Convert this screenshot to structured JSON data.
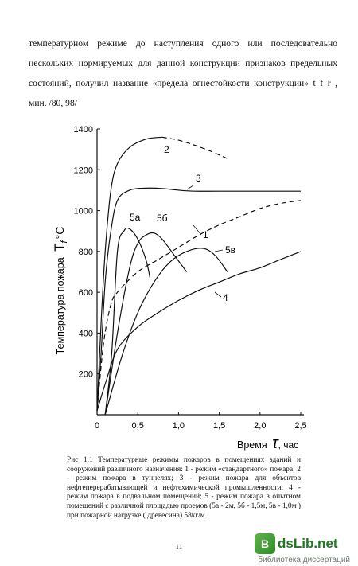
{
  "paragraph": {
    "text": "температурном режиме до наступления одного или последовательно нескольких нормируемых для данной конструкции признаков предельных состояний, получил название «предела огнестойкости конструкции» t f r , мин. /80, 98/"
  },
  "chart_data": {
    "type": "line",
    "title": "",
    "xlabel": "Время τ, час",
    "ylabel": "Температура пожара T_f, °C",
    "xlim": [
      0,
      2.5
    ],
    "ylim": [
      0,
      1400
    ],
    "x_ticks": [
      "0",
      "0,5",
      "1,0",
      "1,5",
      "2,0",
      "2,5"
    ],
    "y_ticks": [
      "200",
      "400",
      "600",
      "800",
      "1000",
      "1200",
      "1400"
    ],
    "grid": false,
    "legend": "none",
    "series": [
      {
        "name": "1",
        "dashed": true,
        "points": [
          [
            0,
            20
          ],
          [
            0.08,
            350
          ],
          [
            0.17,
            540
          ],
          [
            0.25,
            600
          ],
          [
            0.5,
            700
          ],
          [
            0.75,
            760
          ],
          [
            1.0,
            820
          ],
          [
            1.25,
            880
          ],
          [
            1.5,
            930
          ],
          [
            1.75,
            970
          ],
          [
            2.0,
            1010
          ],
          [
            2.25,
            1035
          ],
          [
            2.5,
            1050
          ]
        ]
      },
      {
        "name": "2",
        "dashed_from": 0.9,
        "points": [
          [
            0,
            20
          ],
          [
            0.05,
            450
          ],
          [
            0.1,
            800
          ],
          [
            0.17,
            1100
          ],
          [
            0.25,
            1230
          ],
          [
            0.4,
            1310
          ],
          [
            0.6,
            1350
          ],
          [
            0.8,
            1360
          ],
          [
            1.0,
            1345
          ],
          [
            1.2,
            1320
          ],
          [
            1.4,
            1290
          ],
          [
            1.6,
            1255
          ]
        ]
      },
      {
        "name": "3",
        "points": [
          [
            0,
            20
          ],
          [
            0.05,
            300
          ],
          [
            0.1,
            650
          ],
          [
            0.17,
            900
          ],
          [
            0.25,
            1050
          ],
          [
            0.4,
            1100
          ],
          [
            0.6,
            1110
          ],
          [
            0.8,
            1108
          ],
          [
            1.0,
            1100
          ],
          [
            1.2,
            1095
          ],
          [
            1.5,
            1095
          ],
          [
            2.0,
            1095
          ],
          [
            2.5,
            1095
          ]
        ]
      },
      {
        "name": "5а",
        "points": [
          [
            0.1,
            0
          ],
          [
            0.18,
            300
          ],
          [
            0.25,
            800
          ],
          [
            0.33,
            900
          ],
          [
            0.4,
            910
          ],
          [
            0.5,
            860
          ],
          [
            0.6,
            760
          ],
          [
            0.65,
            670
          ]
        ]
      },
      {
        "name": "5б",
        "points": [
          [
            0.1,
            0
          ],
          [
            0.25,
            400
          ],
          [
            0.4,
            720
          ],
          [
            0.5,
            840
          ],
          [
            0.6,
            880
          ],
          [
            0.7,
            890
          ],
          [
            0.8,
            860
          ],
          [
            0.95,
            780
          ],
          [
            1.1,
            700
          ]
        ]
      },
      {
        "name": "5в",
        "points": [
          [
            0.1,
            0
          ],
          [
            0.3,
            280
          ],
          [
            0.5,
            500
          ],
          [
            0.7,
            650
          ],
          [
            0.9,
            750
          ],
          [
            1.1,
            800
          ],
          [
            1.3,
            815
          ],
          [
            1.45,
            780
          ],
          [
            1.6,
            700
          ]
        ]
      },
      {
        "name": "4",
        "points": [
          [
            0,
            20
          ],
          [
            0.1,
            150
          ],
          [
            0.25,
            320
          ],
          [
            0.5,
            430
          ],
          [
            0.75,
            500
          ],
          [
            1.0,
            560
          ],
          [
            1.25,
            610
          ],
          [
            1.5,
            650
          ],
          [
            1.75,
            690
          ],
          [
            2.0,
            720
          ],
          [
            2.25,
            760
          ],
          [
            2.5,
            800
          ]
        ]
      }
    ]
  },
  "axis": {
    "ylabel": "Температура пожара",
    "ysymbol": "T",
    "ysubscript": "f",
    "yunit": "°C",
    "xlabel": "Время",
    "xsymbol": "τ",
    "xunit": ", час"
  },
  "labels": {
    "s1": "1",
    "s2": "2",
    "s3": "3",
    "s4": "4",
    "s5a": "5а",
    "s5b": "5б",
    "s5v": "5в"
  },
  "caption": {
    "text": "Рис 1.1 Температурные режимы пожаров в помещениях зданий и сооружений различного назначения: 1 - режим «стандартного» пожара; 2 - режим пожара в туннелях; 3 - режим пожара для объектов нефтеперерабатывающей и нефтехимической промышленности; 4 - режим пожара в подвальном помещений; 5 - режим пожара в опытном помещений с различной площадью проемов (5а - 2м, 5б - 1,5м, 5в - 1,0м ) при пожарной нагрузке ( древесина) 58кг/м"
  },
  "page": {
    "number": "11"
  },
  "watermark": {
    "name": "dsLib.net",
    "subtitle": "библиотека диссертаций",
    "color": "#1f7a22"
  }
}
